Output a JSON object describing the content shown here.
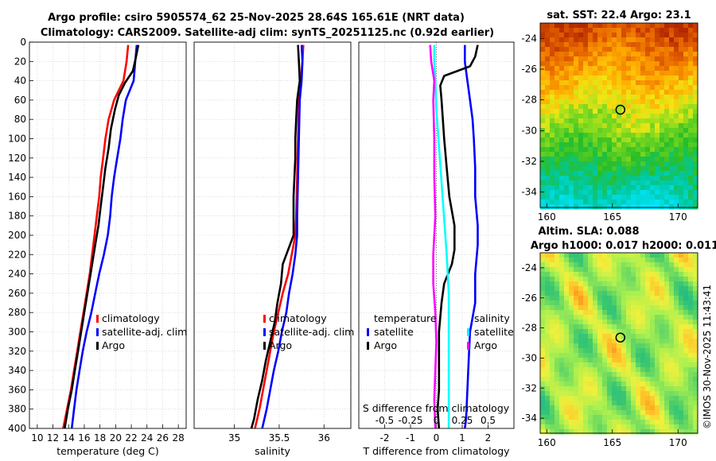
{
  "title_line1": "Argo profile: csiro 5905574_62 25-Nov-2025 28.64S 165.61E (NRT data)",
  "title_line2": "Climatology: CARS2009. Satellite-adj clim: synTS_20251125.nc (0.92d earlier)",
  "watermark": "©IMOS 30-Nov-2025 11:43:41",
  "colors": {
    "clim": "#ff0000",
    "sat": "#0000ff",
    "argo": "#000000",
    "s_sat": "#00ffff",
    "s_argo": "#ff00ff"
  },
  "chart_data": [
    {
      "type": "line",
      "name": "temperature-panel",
      "xlabel": "temperature (deg C)",
      "ylabel": "",
      "xlim": [
        9,
        29
      ],
      "ylim": [
        400,
        0
      ],
      "xticks": [
        "10",
        "12",
        "14",
        "16",
        "18",
        "20",
        "22",
        "24",
        "26",
        "28"
      ],
      "yticks": [
        "0",
        "20",
        "40",
        "60",
        "80",
        "100",
        "120",
        "140",
        "160",
        "180",
        "200",
        "220",
        "240",
        "260",
        "280",
        "300",
        "320",
        "340",
        "360",
        "380",
        "400"
      ],
      "grid": true,
      "legend": [
        "climatology",
        "satellite-adj. clim",
        "Argo"
      ],
      "series": [
        {
          "name": "climatology",
          "color": "#ff0000",
          "points": [
            [
              21.6,
              3
            ],
            [
              21.4,
              20
            ],
            [
              21.0,
              40
            ],
            [
              19.8,
              60
            ],
            [
              19.1,
              80
            ],
            [
              18.7,
              100
            ],
            [
              18.4,
              120
            ],
            [
              18.1,
              140
            ],
            [
              17.9,
              160
            ],
            [
              17.6,
              180
            ],
            [
              17.3,
              200
            ],
            [
              17.0,
              220
            ],
            [
              16.7,
              240
            ],
            [
              16.3,
              260
            ],
            [
              15.9,
              280
            ],
            [
              15.5,
              300
            ],
            [
              15.1,
              320
            ],
            [
              14.7,
              340
            ],
            [
              14.3,
              360
            ],
            [
              13.8,
              380
            ],
            [
              13.3,
              400
            ]
          ]
        },
        {
          "name": "satellite-adj. clim",
          "color": "#0000ff",
          "points": [
            [
              22.7,
              3
            ],
            [
              22.5,
              20
            ],
            [
              22.3,
              40
            ],
            [
              21.3,
              60
            ],
            [
              20.9,
              80
            ],
            [
              20.6,
              100
            ],
            [
              20.2,
              120
            ],
            [
              19.8,
              140
            ],
            [
              19.5,
              160
            ],
            [
              19.3,
              180
            ],
            [
              19.0,
              200
            ],
            [
              18.5,
              220
            ],
            [
              17.9,
              240
            ],
            [
              17.4,
              260
            ],
            [
              16.9,
              280
            ],
            [
              16.3,
              300
            ],
            [
              15.8,
              320
            ],
            [
              15.4,
              340
            ],
            [
              15.0,
              360
            ],
            [
              14.7,
              380
            ],
            [
              14.4,
              400
            ]
          ]
        },
        {
          "name": "Argo",
          "color": "#000000",
          "points": [
            [
              22.9,
              3
            ],
            [
              22.6,
              15
            ],
            [
              22.2,
              30
            ],
            [
              21.2,
              42
            ],
            [
              20.4,
              55
            ],
            [
              19.9,
              70
            ],
            [
              19.4,
              90
            ],
            [
              19.1,
              110
            ],
            [
              18.7,
              130
            ],
            [
              18.4,
              150
            ],
            [
              18.1,
              170
            ],
            [
              17.8,
              190
            ],
            [
              17.4,
              210
            ],
            [
              17.0,
              230
            ],
            [
              16.5,
              255
            ],
            [
              16.1,
              275
            ],
            [
              15.6,
              300
            ],
            [
              15.2,
              320
            ],
            [
              14.8,
              340
            ],
            [
              14.4,
              360
            ],
            [
              13.9,
              380
            ],
            [
              13.5,
              400
            ]
          ]
        }
      ]
    },
    {
      "type": "line",
      "name": "salinity-panel",
      "xlabel": "salinity",
      "xlim": [
        34.55,
        36.3
      ],
      "ylim": [
        400,
        0
      ],
      "xticks": [
        "35",
        "35.5",
        "36"
      ],
      "grid": true,
      "legend": [
        "climatology",
        "satellite-adj. clim",
        "Argo"
      ],
      "series": [
        {
          "name": "climatology",
          "color": "#ff0000",
          "points": [
            [
              35.77,
              3
            ],
            [
              35.76,
              20
            ],
            [
              35.74,
              40
            ],
            [
              35.72,
              60
            ],
            [
              35.71,
              100
            ],
            [
              35.7,
              140
            ],
            [
              35.69,
              180
            ],
            [
              35.68,
              200
            ],
            [
              35.64,
              220
            ],
            [
              35.6,
              240
            ],
            [
              35.54,
              260
            ],
            [
              35.49,
              280
            ],
            [
              35.44,
              300
            ],
            [
              35.4,
              320
            ],
            [
              35.36,
              340
            ],
            [
              35.32,
              360
            ],
            [
              35.28,
              380
            ],
            [
              35.23,
              400
            ]
          ]
        },
        {
          "name": "satellite-adj. clim",
          "color": "#0000ff",
          "points": [
            [
              35.75,
              3
            ],
            [
              35.76,
              20
            ],
            [
              35.75,
              40
            ],
            [
              35.73,
              60
            ],
            [
              35.72,
              100
            ],
            [
              35.71,
              140
            ],
            [
              35.7,
              180
            ],
            [
              35.7,
              200
            ],
            [
              35.68,
              220
            ],
            [
              35.65,
              240
            ],
            [
              35.61,
              260
            ],
            [
              35.58,
              280
            ],
            [
              35.53,
              300
            ],
            [
              35.49,
              320
            ],
            [
              35.44,
              340
            ],
            [
              35.4,
              360
            ],
            [
              35.36,
              380
            ],
            [
              35.31,
              400
            ]
          ]
        },
        {
          "name": "Argo",
          "color": "#000000",
          "points": [
            [
              35.71,
              3
            ],
            [
              35.72,
              20
            ],
            [
              35.73,
              40
            ],
            [
              35.7,
              60
            ],
            [
              35.69,
              80
            ],
            [
              35.68,
              100
            ],
            [
              35.68,
              120
            ],
            [
              35.67,
              140
            ],
            [
              35.66,
              160
            ],
            [
              35.66,
              180
            ],
            [
              35.66,
              200
            ],
            [
              35.6,
              215
            ],
            [
              35.54,
              230
            ],
            [
              35.52,
              250
            ],
            [
              35.48,
              270
            ],
            [
              35.45,
              290
            ],
            [
              35.4,
              310
            ],
            [
              35.35,
              330
            ],
            [
              35.31,
              350
            ],
            [
              35.26,
              370
            ],
            [
              35.22,
              390
            ],
            [
              35.19,
              400
            ]
          ]
        }
      ]
    },
    {
      "type": "line",
      "name": "difference-panel",
      "xlabel": "T difference from climatology",
      "xlabel_top": "S difference from climatology",
      "xlim": [
        -3,
        3
      ],
      "ylim": [
        400,
        0
      ],
      "xticks": [
        "-2",
        "-1",
        "0",
        "1",
        "2"
      ],
      "xticks_top": [
        "-0.5",
        "-0.25",
        "0",
        "0.25",
        "0.5"
      ],
      "grid": true,
      "legend_left_title": "temperature",
      "legend_left": [
        "satellite",
        "Argo"
      ],
      "legend_right_title": "salinity",
      "legend_right": [
        "satellite",
        "Argo"
      ],
      "series": [
        {
          "name": "temperature satellite",
          "color": "#0000ff",
          "points": [
            [
              1.1,
              3
            ],
            [
              1.1,
              20
            ],
            [
              1.2,
              40
            ],
            [
              1.3,
              60
            ],
            [
              1.4,
              80
            ],
            [
              1.45,
              100
            ],
            [
              1.5,
              130
            ],
            [
              1.5,
              160
            ],
            [
              1.6,
              190
            ],
            [
              1.6,
              210
            ],
            [
              1.5,
              240
            ],
            [
              1.5,
              270
            ],
            [
              1.3,
              300
            ],
            [
              1.25,
              330
            ],
            [
              1.2,
              360
            ],
            [
              1.15,
              390
            ],
            [
              1.1,
              400
            ]
          ]
        },
        {
          "name": "temperature Argo",
          "color": "#000000",
          "points": [
            [
              1.6,
              3
            ],
            [
              1.5,
              15
            ],
            [
              1.3,
              25
            ],
            [
              0.3,
              35
            ],
            [
              0.15,
              45
            ],
            [
              0.2,
              60
            ],
            [
              0.3,
              100
            ],
            [
              0.4,
              130
            ],
            [
              0.5,
              160
            ],
            [
              0.7,
              190
            ],
            [
              0.7,
              215
            ],
            [
              0.6,
              230
            ],
            [
              0.3,
              250
            ],
            [
              0.2,
              270
            ],
            [
              0.1,
              300
            ],
            [
              0.1,
              330
            ],
            [
              0.1,
              360
            ],
            [
              0.05,
              380
            ],
            [
              0.1,
              400
            ]
          ]
        },
        {
          "name": "salinity satellite",
          "color": "#00ffff",
          "points": [
            [
              -0.02,
              3
            ],
            [
              -0.02,
              20
            ],
            [
              -0.01,
              40
            ],
            [
              0.0,
              70
            ],
            [
              0.02,
              100
            ],
            [
              0.04,
              130
            ],
            [
              0.06,
              160
            ],
            [
              0.08,
              190
            ],
            [
              0.1,
              220
            ],
            [
              0.12,
              260
            ],
            [
              0.12,
              300
            ],
            [
              0.12,
              340
            ],
            [
              0.12,
              380
            ],
            [
              0.12,
              400
            ]
          ]
        },
        {
          "name": "salinity Argo",
          "color": "#ff00ff",
          "points": [
            [
              -0.06,
              3
            ],
            [
              -0.05,
              20
            ],
            [
              -0.02,
              40
            ],
            [
              -0.03,
              60
            ],
            [
              -0.02,
              100
            ],
            [
              -0.02,
              140
            ],
            [
              -0.01,
              180
            ],
            [
              -0.02,
              200
            ],
            [
              -0.03,
              220
            ],
            [
              -0.03,
              250
            ],
            [
              -0.01,
              280
            ],
            [
              0.0,
              310
            ],
            [
              -0.01,
              340
            ],
            [
              -0.02,
              370
            ],
            [
              -0.01,
              400
            ]
          ]
        }
      ]
    },
    {
      "type": "heatmap",
      "name": "sst-map",
      "title": "sat. SST: 22.4 Argo: 23.1",
      "xticks": [
        "160",
        "165",
        "170"
      ],
      "yticks": [
        "-24",
        "-26",
        "-28",
        "-30",
        "-32",
        "-34"
      ],
      "xlim": [
        159.5,
        171.5
      ],
      "ylim": [
        -35,
        -23
      ]
    },
    {
      "type": "heatmap",
      "name": "sla-map",
      "title_line1": "Altim. SLA: 0.088",
      "title_line2": "Argo h1000: 0.017 h2000: 0.011",
      "xticks": [
        "160",
        "165",
        "170"
      ],
      "yticks": [
        "-24",
        "-26",
        "-28",
        "-30",
        "-32",
        "-34"
      ],
      "xlim": [
        159.5,
        171.5
      ],
      "ylim": [
        -35,
        -23
      ]
    }
  ]
}
